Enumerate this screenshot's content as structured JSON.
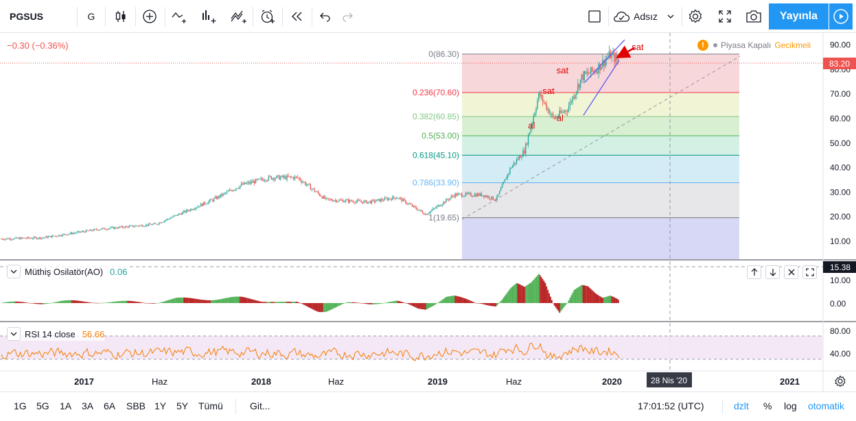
{
  "toolbar": {
    "symbol": "PGSUS",
    "interval": "G",
    "layout_name": "Adsız",
    "publish_label": "Yayınla"
  },
  "quote": {
    "change": "−0.30 (−0.36%)",
    "status": "Piyasa Kapalı",
    "delay": "Gecikmeli",
    "last_price": "83.20"
  },
  "fib": [
    {
      "label": "0(86.30)",
      "value": 86.3,
      "color": "#787b86"
    },
    {
      "label": "0.236(70.60)",
      "value": 70.6,
      "color": "#f23645"
    },
    {
      "label": "0.382(60.85)",
      "value": 60.85,
      "color": "#81c784"
    },
    {
      "label": "0.5(53.00)",
      "value": 53.0,
      "color": "#4caf50"
    },
    {
      "label": "0.618(45.10)",
      "value": 45.1,
      "color": "#089981"
    },
    {
      "label": "0.786(33.90)",
      "value": 33.9,
      "color": "#64b5f6"
    },
    {
      "label": "1(19.65)",
      "value": 19.65,
      "color": "#787b86"
    }
  ],
  "annotations": [
    {
      "text": "sat",
      "x": "2020-02",
      "y": 88.0
    },
    {
      "text": "sat",
      "x": "2019-10",
      "y": 78.5
    },
    {
      "text": "sat",
      "x": "2019-09",
      "y": 70.0
    },
    {
      "text": "al",
      "x": "2019-10",
      "y": 59.0
    },
    {
      "text": "al",
      "x": "2019-08",
      "y": 56.0
    }
  ],
  "price_axis": [
    "90.00",
    "80.00",
    "70.00",
    "60.00",
    "50.00",
    "40.00",
    "30.00",
    "20.00",
    "10.00"
  ],
  "ao": {
    "title": "Müthiş Osilatör(AO)",
    "value": "0.06",
    "last": "15.38",
    "axis": [
      "10.00",
      "0.00"
    ]
  },
  "rsi": {
    "title": "RSI 14 close",
    "value": "56.66",
    "axis": [
      "80.00",
      "40.00"
    ]
  },
  "time_axis": [
    "2017",
    "Haz",
    "2018",
    "Haz",
    "2019",
    "Haz",
    "2020",
    "2021"
  ],
  "crosshair_date": "28 Nis '20",
  "ranges": [
    "1G",
    "5G",
    "1A",
    "3A",
    "6A",
    "SBB",
    "1Y",
    "5Y",
    "Tümü"
  ],
  "goto_label": "Git...",
  "clock": "17:01:52 (UTC)",
  "scale_options": [
    "dzlt",
    "%",
    "log",
    "otomatik"
  ],
  "colors": {
    "up": "#26a69a",
    "down": "#ef5350",
    "accent": "#2196f3",
    "price_badge": "#ef5350",
    "rsi_line": "#f57c00",
    "trend": "#5b5bf5",
    "arrow": "#e00000"
  },
  "chart_data": {
    "type": "candlestick",
    "x_range": [
      "2016-06",
      "2021-04"
    ],
    "ylim": [
      5,
      92
    ],
    "trend_points": [
      {
        "x": "2016-06",
        "y": 11
      },
      {
        "x": "2016-09",
        "y": 11.5
      },
      {
        "x": "2017-01",
        "y": 15
      },
      {
        "x": "2017-05",
        "y": 17
      },
      {
        "x": "2017-09",
        "y": 27
      },
      {
        "x": "2017-11",
        "y": 33
      },
      {
        "x": "2018-01",
        "y": 36
      },
      {
        "x": "2018-03",
        "y": 36
      },
      {
        "x": "2018-05",
        "y": 27
      },
      {
        "x": "2018-08",
        "y": 26
      },
      {
        "x": "2018-10",
        "y": 28
      },
      {
        "x": "2018-12",
        "y": 21
      },
      {
        "x": "2019-02",
        "y": 29
      },
      {
        "x": "2019-04",
        "y": 29
      },
      {
        "x": "2019-05",
        "y": 27
      },
      {
        "x": "2019-06",
        "y": 40
      },
      {
        "x": "2019-07",
        "y": 47
      },
      {
        "x": "2019-08",
        "y": 70
      },
      {
        "x": "2019-09",
        "y": 60
      },
      {
        "x": "2019-10",
        "y": 64
      },
      {
        "x": "2019-11",
        "y": 77
      },
      {
        "x": "2019-12",
        "y": 80
      },
      {
        "x": "2020-01",
        "y": 86
      },
      {
        "x": "2020-01-20",
        "y": 83.2
      }
    ]
  }
}
